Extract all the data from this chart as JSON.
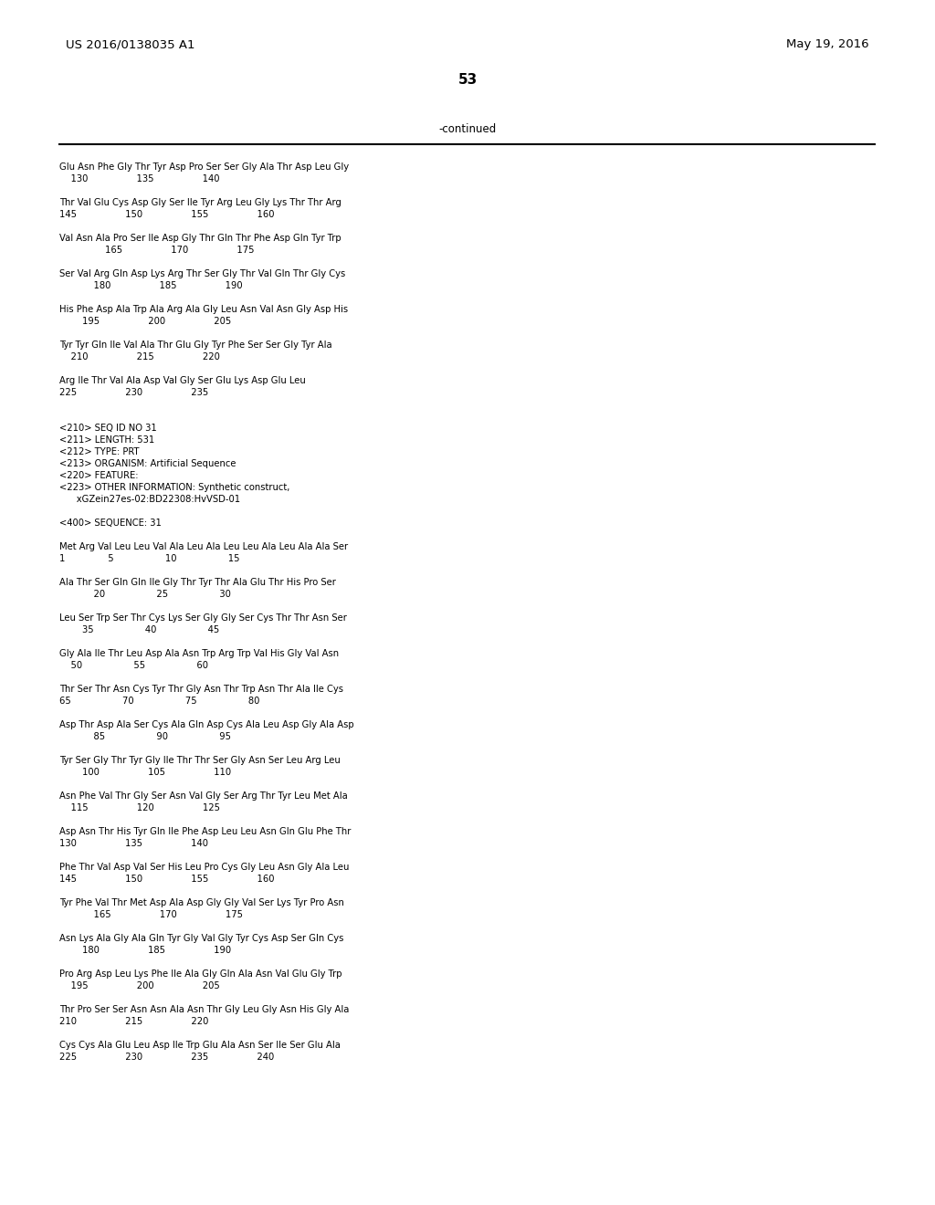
{
  "patent_number": "US 2016/0138035 A1",
  "date": "May 19, 2016",
  "page_number": "53",
  "continued_label": "-continued",
  "background_color": "#ffffff",
  "text_color": "#000000",
  "lines": [
    "Glu Asn Phe Gly Thr Tyr Asp Pro Ser Ser Gly Ala Thr Asp Leu Gly",
    "    130                 135                 140",
    "",
    "Thr Val Glu Cys Asp Gly Ser Ile Tyr Arg Leu Gly Lys Thr Thr Arg",
    "145                 150                 155                 160",
    "",
    "Val Asn Ala Pro Ser Ile Asp Gly Thr Gln Thr Phe Asp Gln Tyr Trp",
    "                165                 170                 175",
    "",
    "Ser Val Arg Gln Asp Lys Arg Thr Ser Gly Thr Val Gln Thr Gly Cys",
    "            180                 185                 190",
    "",
    "His Phe Asp Ala Trp Ala Arg Ala Gly Leu Asn Val Asn Gly Asp His",
    "        195                 200                 205",
    "",
    "Tyr Tyr Gln Ile Val Ala Thr Glu Gly Tyr Phe Ser Ser Gly Tyr Ala",
    "    210                 215                 220",
    "",
    "Arg Ile Thr Val Ala Asp Val Gly Ser Glu Lys Asp Glu Leu",
    "225                 230                 235",
    "",
    "",
    "<210> SEQ ID NO 31",
    "<211> LENGTH: 531",
    "<212> TYPE: PRT",
    "<213> ORGANISM: Artificial Sequence",
    "<220> FEATURE:",
    "<223> OTHER INFORMATION: Synthetic construct,",
    "      xGZein27es-02:BD22308:HvVSD-01",
    "",
    "<400> SEQUENCE: 31",
    "",
    "Met Arg Val Leu Leu Val Ala Leu Ala Leu Leu Ala Leu Ala Ala Ser",
    "1               5                  10                  15",
    "",
    "Ala Thr Ser Gln Gln Ile Gly Thr Tyr Thr Ala Glu Thr His Pro Ser",
    "            20                  25                  30",
    "",
    "Leu Ser Trp Ser Thr Cys Lys Ser Gly Gly Ser Cys Thr Thr Asn Ser",
    "        35                  40                  45",
    "",
    "Gly Ala Ile Thr Leu Asp Ala Asn Trp Arg Trp Val His Gly Val Asn",
    "    50                  55                  60",
    "",
    "Thr Ser Thr Asn Cys Tyr Thr Gly Asn Thr Trp Asn Thr Ala Ile Cys",
    "65                  70                  75                  80",
    "",
    "Asp Thr Asp Ala Ser Cys Ala Gln Asp Cys Ala Leu Asp Gly Ala Asp",
    "            85                  90                  95",
    "",
    "Tyr Ser Gly Thr Tyr Gly Ile Thr Thr Ser Gly Asn Ser Leu Arg Leu",
    "        100                 105                 110",
    "",
    "Asn Phe Val Thr Gly Ser Asn Val Gly Ser Arg Thr Tyr Leu Met Ala",
    "    115                 120                 125",
    "",
    "Asp Asn Thr His Tyr Gln Ile Phe Asp Leu Leu Asn Gln Glu Phe Thr",
    "130                 135                 140",
    "",
    "Phe Thr Val Asp Val Ser His Leu Pro Cys Gly Leu Asn Gly Ala Leu",
    "145                 150                 155                 160",
    "",
    "Tyr Phe Val Thr Met Asp Ala Asp Gly Gly Val Ser Lys Tyr Pro Asn",
    "            165                 170                 175",
    "",
    "Asn Lys Ala Gly Ala Gln Tyr Gly Val Gly Tyr Cys Asp Ser Gln Cys",
    "        180                 185                 190",
    "",
    "Pro Arg Asp Leu Lys Phe Ile Ala Gly Gln Ala Asn Val Glu Gly Trp",
    "    195                 200                 205",
    "",
    "Thr Pro Ser Ser Asn Asn Ala Asn Thr Gly Leu Gly Asn His Gly Ala",
    "210                 215                 220",
    "",
    "Cys Cys Ala Glu Leu Asp Ile Trp Glu Ala Asn Ser Ile Ser Glu Ala",
    "225                 230                 235                 240"
  ]
}
